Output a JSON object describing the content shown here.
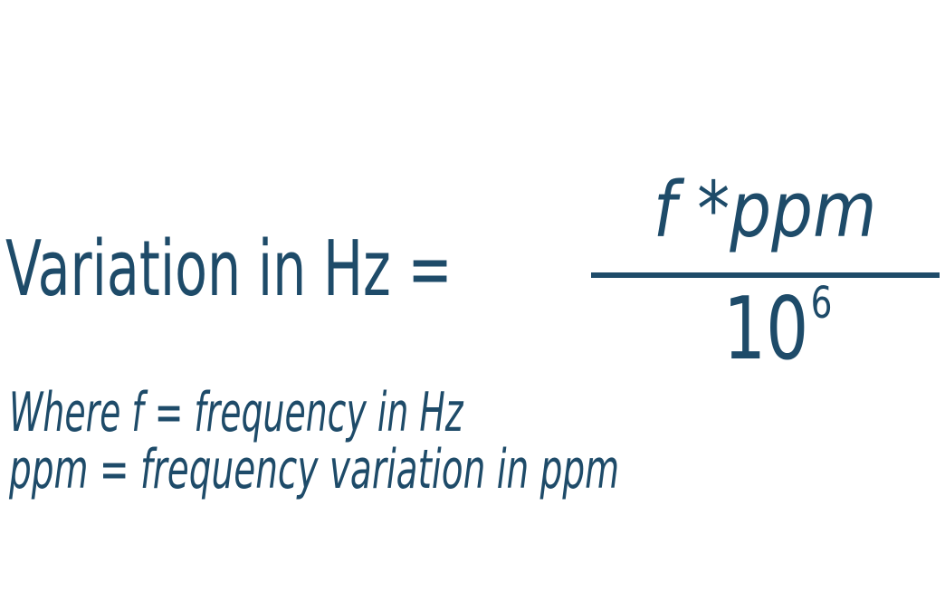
{
  "colors": {
    "ink": "#1e4b69",
    "background": "#ffffff"
  },
  "equation": {
    "lhs": "Variation in Hz =",
    "numerator": "f *ppm",
    "denominator_base": "10",
    "denominator_exponent": "6"
  },
  "notes": {
    "line1": "Where f = frequency in Hz",
    "line2": "ppm = frequency variation in ppm"
  }
}
